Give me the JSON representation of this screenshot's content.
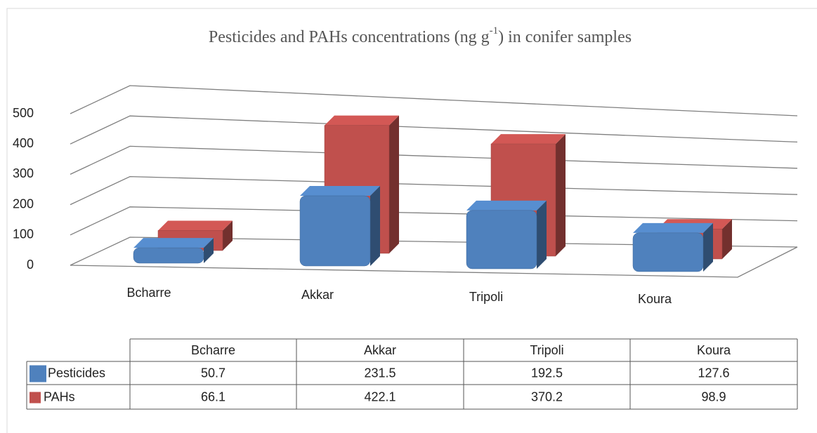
{
  "chart_data": {
    "type": "bar3d",
    "title": [
      "Pesticides and PAHs concentrations (ng g",
      "-1",
      ") in conifer samples"
    ],
    "categories": [
      "Bcharre",
      "Akkar",
      "Tripoli",
      "Koura"
    ],
    "series": [
      {
        "name": "Pesticides",
        "color": "#4f81bd",
        "values": [
          50.7,
          231.5,
          192.5,
          127.6
        ]
      },
      {
        "name": "PAHs",
        "color": "#c0504d",
        "values": [
          66.1,
          422.1,
          370.2,
          98.9
        ]
      }
    ],
    "ylim": [
      0,
      500
    ],
    "yticks": [
      0,
      100,
      200,
      300,
      400,
      500
    ],
    "grid": true,
    "data_table": true
  }
}
